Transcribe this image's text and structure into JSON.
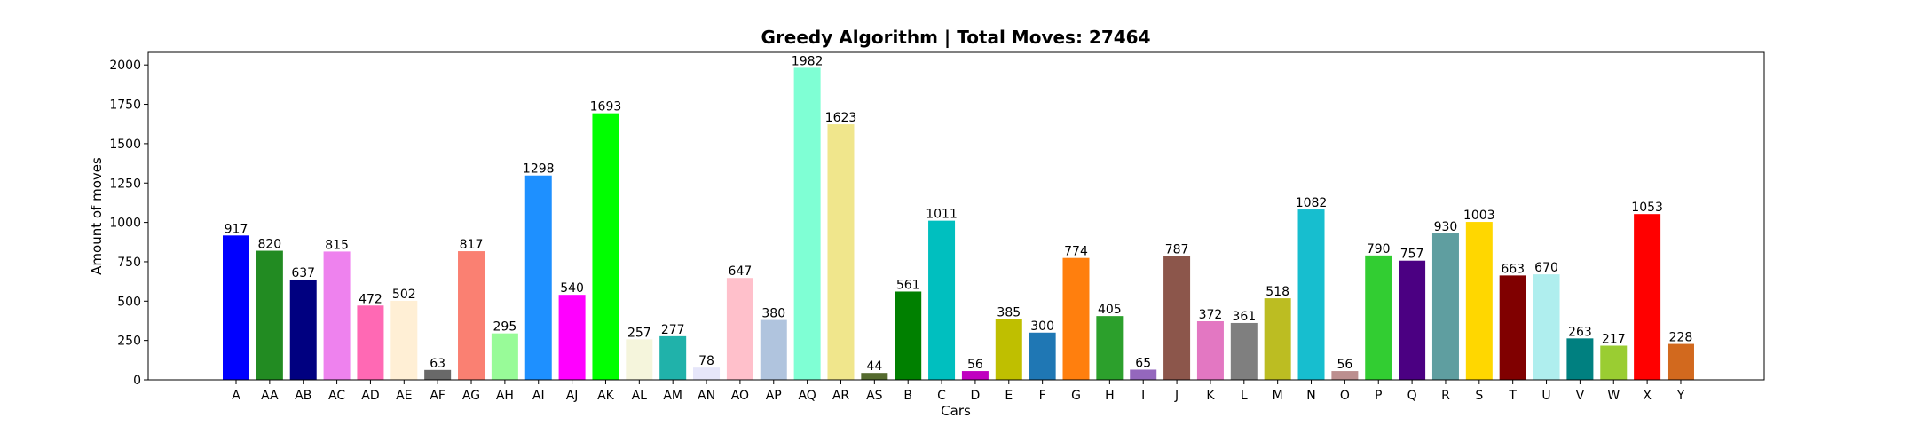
{
  "chart_data": {
    "type": "bar",
    "title": "Greedy Algorithm | Total Moves: 27464",
    "xlabel": "Cars",
    "ylabel": "Amount of moves",
    "ylim": [
      0,
      2080
    ],
    "yticks": [
      0,
      250,
      500,
      750,
      1000,
      1250,
      1500,
      1750,
      2000
    ],
    "grid": false,
    "legend": "none",
    "categories": [
      "A",
      "AA",
      "AB",
      "AC",
      "AD",
      "AE",
      "AF",
      "AG",
      "AH",
      "AI",
      "AJ",
      "AK",
      "AL",
      "AM",
      "AN",
      "AO",
      "AP",
      "AQ",
      "AR",
      "AS",
      "B",
      "C",
      "D",
      "E",
      "F",
      "G",
      "H",
      "I",
      "J",
      "K",
      "L",
      "M",
      "N",
      "O",
      "P",
      "Q",
      "R",
      "S",
      "T",
      "U",
      "V",
      "W",
      "X",
      "Y"
    ],
    "values": [
      917,
      820,
      637,
      815,
      472,
      502,
      63,
      817,
      295,
      1298,
      540,
      1693,
      257,
      277,
      78,
      647,
      380,
      1982,
      1623,
      44,
      561,
      1011,
      56,
      385,
      300,
      774,
      405,
      65,
      787,
      372,
      361,
      518,
      1082,
      56,
      790,
      757,
      930,
      1003,
      663,
      670,
      263,
      217,
      1053,
      228
    ],
    "colors": [
      "#0000ff",
      "#228b22",
      "#000080",
      "#ee82ee",
      "#ff69b4",
      "#ffefd5",
      "#696969",
      "#fa8072",
      "#98fb98",
      "#1e90ff",
      "#ff00ff",
      "#00ff00",
      "#f5f5dc",
      "#20b2aa",
      "#e6e6fa",
      "#ffc0cb",
      "#b0c4de",
      "#7fffd4",
      "#f0e68c",
      "#556b2f",
      "#008000",
      "#00bfbf",
      "#c000c0",
      "#bfbf00",
      "#1f77b4",
      "#ff7f0e",
      "#2ca02c",
      "#9467bd",
      "#8c564b",
      "#e377c2",
      "#7f7f7f",
      "#bcbd22",
      "#17becf",
      "#bc8f8f",
      "#32cd32",
      "#4b0082",
      "#5f9ea0",
      "#ffd700",
      "#800000",
      "#afeeee",
      "#008080",
      "#9acd32",
      "#ff0000",
      "#d2691e"
    ]
  }
}
